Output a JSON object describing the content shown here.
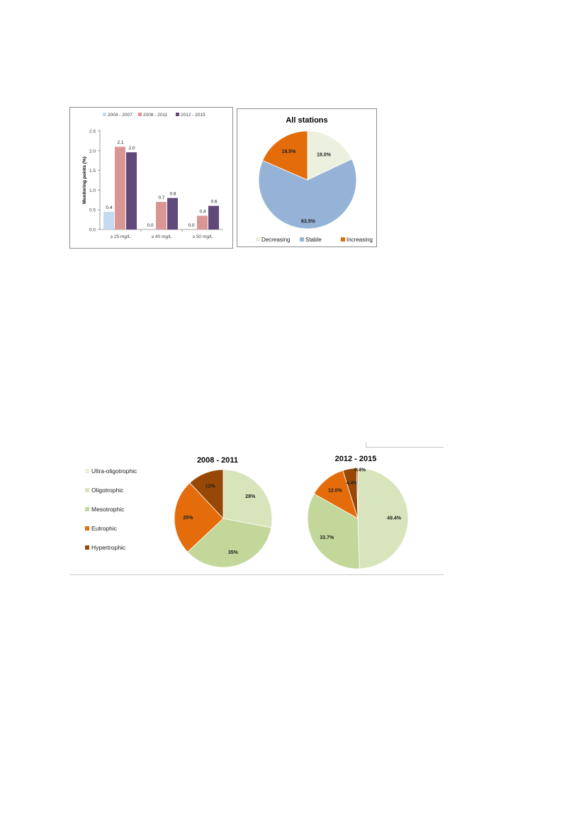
{
  "chart_data": [
    {
      "type": "bar",
      "title": "",
      "xlabel": "",
      "ylabel": "Monitoring points (%)",
      "ylim": [
        0,
        2.5
      ],
      "yticks": [
        "0.0",
        "0.5",
        "1.0",
        "1.5",
        "2.0",
        "2.5"
      ],
      "categories": [
        "≥ 25 mg/L",
        "≥ 40 mg/L",
        "≥ 50 mg/L"
      ],
      "series": [
        {
          "name": "2004 - 2007",
          "values": [
            0.45,
            0.0,
            0.0
          ],
          "labels": [
            "0.4",
            "0.0",
            "0.0"
          ],
          "color": "#c5d9f1"
        },
        {
          "name": "2008 - 2011",
          "values": [
            2.1,
            0.7,
            0.35
          ],
          "labels": [
            "2.1",
            "0.7",
            "0.4"
          ],
          "color": "#da9694"
        },
        {
          "name": "2012 - 2015",
          "values": [
            1.96,
            0.8,
            0.6
          ],
          "labels": [
            "2.0",
            "0.8",
            "0.6"
          ],
          "color": "#60497a"
        }
      ],
      "legend_position": "top",
      "grid": false
    },
    {
      "type": "pie",
      "title": "All stations",
      "slices": [
        {
          "name": "Decreasing",
          "value": 18.0,
          "label": "18.0%",
          "color": "#ebf1de"
        },
        {
          "name": "Stable",
          "value": 63.5,
          "label": "63.5%",
          "color": "#95b3d7"
        },
        {
          "name": "Increasing",
          "value": 18.5,
          "label": "18.5%",
          "color": "#e46c0a"
        }
      ],
      "legend_position": "bottom"
    },
    {
      "type": "pie",
      "title": "2008 - 2011",
      "slices": [
        {
          "name": "Ultra-oligotrophic",
          "value": 0,
          "label": "",
          "color": "#ebf1de"
        },
        {
          "name": "Oligotrophic",
          "value": 28,
          "label": "28%",
          "color": "#d8e4bc"
        },
        {
          "name": "Mesotrophic",
          "value": 35,
          "label": "35%",
          "color": "#c4d79b"
        },
        {
          "name": "Eutrophic",
          "value": 25,
          "label": "25%",
          "color": "#e46c0a"
        },
        {
          "name": "Hypertrophic",
          "value": 12,
          "label": "12%",
          "color": "#974706"
        }
      ],
      "legend_position": "left"
    },
    {
      "type": "pie",
      "title": "2012 - 2015",
      "slices": [
        {
          "name": "Ultra-oligotrophic",
          "value": 0,
          "label": "",
          "color": "#ebf1de"
        },
        {
          "name": "Oligotrophic",
          "value": 49.4,
          "label": "49.4%",
          "color": "#d8e4bc"
        },
        {
          "name": "Mesotrophic",
          "value": 33.7,
          "label": "33.7%",
          "color": "#c4d79b"
        },
        {
          "name": "Eutrophic",
          "value": 12.0,
          "label": "12.0%",
          "color": "#e46c0a"
        },
        {
          "name": "Hypertrophic",
          "value": 4.4,
          "label": "4.4%",
          "color": "#974706"
        },
        {
          "name": "",
          "value": 0.4,
          "label": "0.4%",
          "color": "#974706"
        }
      ]
    }
  ],
  "trophic_legend": [
    {
      "name": "Ultra-oligotrophic",
      "color": "#ebf1de"
    },
    {
      "name": "Oligotrophic",
      "color": "#d8e4bc"
    },
    {
      "name": "Mesotrophic",
      "color": "#c4d79b"
    },
    {
      "name": "Eutrophic",
      "color": "#e46c0a"
    },
    {
      "name": "Hypertrophic",
      "color": "#974706"
    }
  ]
}
